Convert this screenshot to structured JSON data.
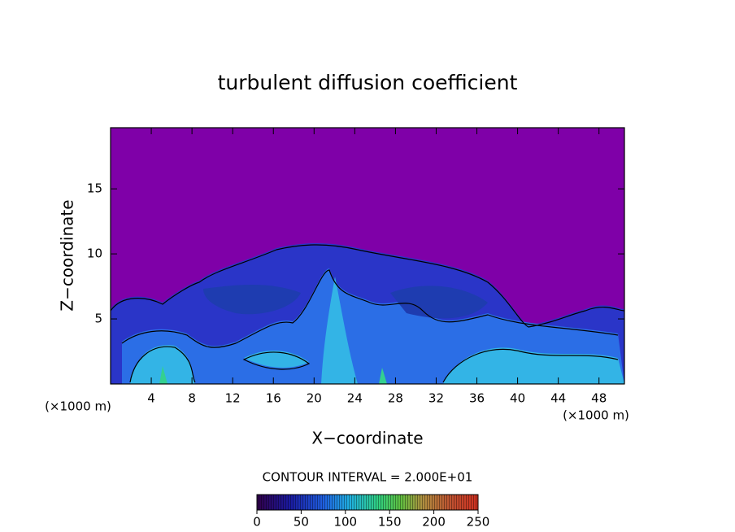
{
  "chart_data": {
    "type": "contour",
    "title": "turbulent diffusion coefficient",
    "x_label": "X−coordinate",
    "y_label": "Z−coordinate",
    "axis_unit": "(×1000 m)",
    "xlim": [
      0,
      50.5
    ],
    "ylim": [
      0,
      19.7
    ],
    "xticks": [
      4,
      8,
      12,
      16,
      20,
      24,
      28,
      32,
      36,
      40,
      44,
      48
    ],
    "yticks": [
      5,
      10,
      15
    ],
    "background_color": "#7f00a8",
    "contour_interval_label": "CONTOUR INTERVAL = 2.000E+01",
    "colorbar": {
      "lim": [
        0,
        250
      ],
      "ticks": [
        0,
        50,
        100,
        150,
        200,
        250
      ]
    }
  }
}
